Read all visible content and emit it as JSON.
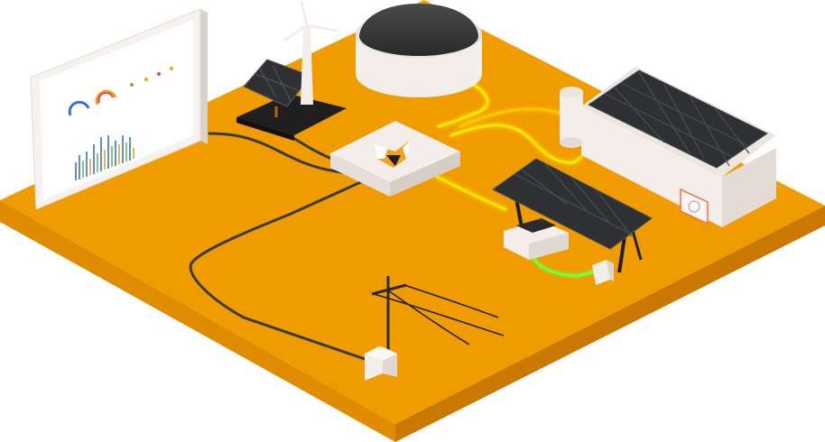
{
  "scene": {
    "colors": {
      "platform_top": "#F09B00",
      "platform_left": "#E08C00",
      "platform_right": "#C97900",
      "dark_cable": "#3A3A3A",
      "glow_cable": "#FFE800",
      "green_cable": "#76FF3A",
      "device_white": "#F4EEEA",
      "panel_dark": "#2E3033",
      "fox_orange": "#F5A21B"
    },
    "icons": {
      "hub": "fox-logo-icon",
      "monitor": "dashboard-screen",
      "wind": "wind-turbine-icon",
      "tank": "biogas-tank-icon",
      "solar": "solar-panel-icon",
      "house": "building-icon",
      "carport": "carport-icon",
      "car": "car-icon",
      "charger": "ev-charger-icon",
      "pole": "power-pole-icon",
      "meter": "meter-box-icon"
    }
  }
}
